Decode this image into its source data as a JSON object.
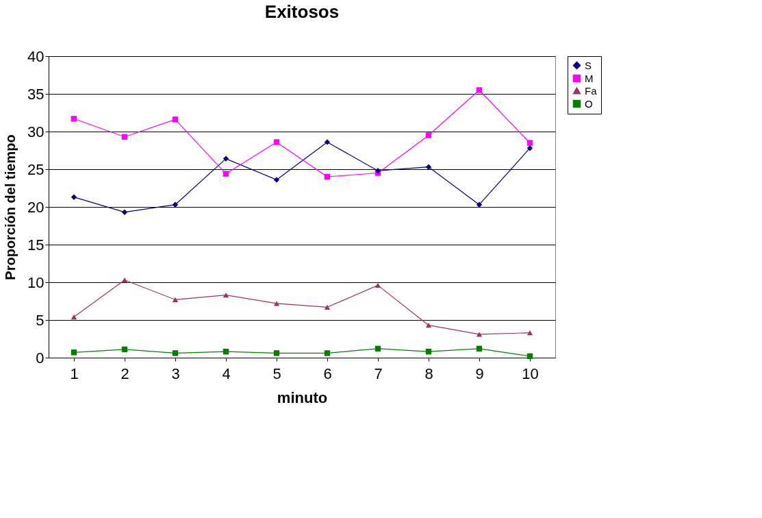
{
  "chart_data": {
    "type": "line",
    "title": "Exitosos",
    "xlabel": "minuto",
    "ylabel": "Proporción del tiempo",
    "categories": [
      "1",
      "2",
      "3",
      "4",
      "5",
      "6",
      "7",
      "8",
      "9",
      "10"
    ],
    "series": [
      {
        "name": "S",
        "color": "#000080",
        "marker": "diamond",
        "values": [
          21.3,
          19.3,
          20.3,
          26.4,
          23.6,
          28.6,
          24.8,
          25.3,
          20.3,
          27.8
        ]
      },
      {
        "name": "M",
        "color": "#ff00ff",
        "marker": "square",
        "values": [
          31.7,
          29.3,
          31.6,
          24.4,
          28.6,
          24.0,
          24.5,
          29.5,
          35.5,
          28.5
        ]
      },
      {
        "name": "Fa",
        "color": "#993366",
        "marker": "triangle",
        "values": [
          5.4,
          10.3,
          7.7,
          8.3,
          7.2,
          6.7,
          9.6,
          4.3,
          3.1,
          3.3
        ]
      },
      {
        "name": "O",
        "color": "#008000",
        "marker": "square",
        "values": [
          0.7,
          1.1,
          0.6,
          0.8,
          0.6,
          0.6,
          1.2,
          0.8,
          1.2,
          0.2
        ]
      }
    ],
    "ylim": [
      0,
      40
    ],
    "yticks": [
      0,
      5,
      10,
      15,
      20,
      25,
      30,
      35,
      40
    ],
    "grid": "y",
    "legend": "right",
    "line_style": "solid"
  }
}
